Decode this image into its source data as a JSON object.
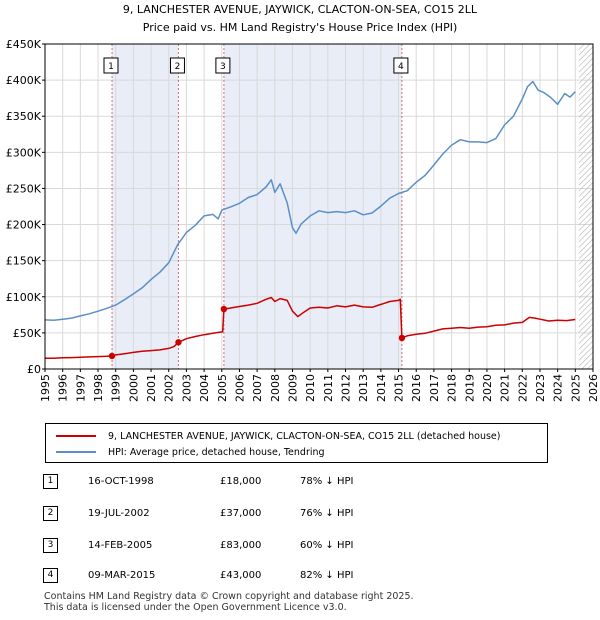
{
  "chart_data": {
    "type": "line",
    "title": "9, LANCHESTER AVENUE, JAYWICK, CLACTON-ON-SEA, CO15 2LL",
    "subtitle": "Price paid vs. HM Land Registry's House Price Index (HPI)",
    "xlim": [
      1995,
      2026
    ],
    "ylim": [
      0,
      450000
    ],
    "x_ticks": [
      1995,
      1996,
      1997,
      1998,
      1999,
      2000,
      2001,
      2002,
      2003,
      2004,
      2005,
      2006,
      2007,
      2008,
      2009,
      2010,
      2011,
      2012,
      2013,
      2014,
      2015,
      2016,
      2017,
      2018,
      2019,
      2020,
      2021,
      2022,
      2023,
      2024,
      2025,
      2026
    ],
    "y_ticks": [
      0,
      50000,
      100000,
      150000,
      200000,
      250000,
      300000,
      350000,
      400000,
      450000
    ],
    "y_tick_labels": [
      "£0",
      "£50K",
      "£100K",
      "£150K",
      "£200K",
      "£250K",
      "£300K",
      "£350K",
      "£400K",
      "£450K"
    ],
    "data_end": 2025.2,
    "colors": {
      "price_paid": "#cc0000",
      "hpi": "#5b8fc7",
      "shade": "#e8edf7",
      "marker_line": "#cc0000"
    },
    "series": [
      {
        "name": "9, LANCHESTER AVENUE, JAYWICK, CLACTON-ON-SEA, CO15 2LL (detached house)",
        "color": "#cc0000",
        "x": [
          1995.0,
          1995.5,
          1996.0,
          1996.5,
          1997.0,
          1997.5,
          1998.0,
          1998.5,
          1998.79,
          1999.0,
          1999.5,
          2000.0,
          2000.5,
          2001.0,
          2001.5,
          2002.0,
          2002.3,
          2002.55,
          2003.0,
          2003.5,
          2004.0,
          2004.5,
          2005.05,
          2005.12,
          2005.5,
          2006.0,
          2006.5,
          2007.0,
          2007.5,
          2007.8,
          2008.0,
          2008.3,
          2008.7,
          2009.0,
          2009.3,
          2009.6,
          2010.0,
          2010.5,
          2011.0,
          2011.5,
          2012.0,
          2012.5,
          2013.0,
          2013.5,
          2014.0,
          2014.5,
          2015.0,
          2015.1,
          2015.19,
          2015.5,
          2016.0,
          2016.5,
          2017.0,
          2017.5,
          2018.0,
          2018.5,
          2019.0,
          2019.5,
          2020.0,
          2020.5,
          2021.0,
          2021.5,
          2022.0,
          2022.4,
          2022.7,
          2023.0,
          2023.5,
          2024.0,
          2024.5,
          2025.0
        ],
        "y": [
          15000,
          14800,
          15500,
          15800,
          16200,
          16800,
          17200,
          17600,
          18000,
          19500,
          21000,
          23000,
          24500,
          25500,
          26500,
          28500,
          31000,
          37000,
          42000,
          45000,
          47500,
          49500,
          51500,
          83000,
          84500,
          86500,
          88500,
          91000,
          96500,
          99000,
          93500,
          97500,
          95000,
          80000,
          72500,
          78000,
          84500,
          85500,
          84500,
          87500,
          86000,
          88500,
          86000,
          85500,
          89500,
          93500,
          95000,
          96500,
          43000,
          46000,
          48000,
          49500,
          52500,
          55500,
          56500,
          57500,
          56500,
          58000,
          58500,
          60500,
          61000,
          63500,
          64500,
          71500,
          70500,
          69000,
          66500,
          67500,
          67000,
          68500
        ]
      },
      {
        "name": "HPI: Average price, detached house, Tendring",
        "color": "#5b8fc7",
        "x": [
          1995.0,
          1995.5,
          1996.0,
          1996.5,
          1997.0,
          1997.5,
          1998.0,
          1998.5,
          1999.0,
          1999.5,
          2000.0,
          2000.5,
          2001.0,
          2001.5,
          2002.0,
          2002.5,
          2003.0,
          2003.5,
          2004.0,
          2004.5,
          2004.8,
          2005.0,
          2005.5,
          2006.0,
          2006.5,
          2007.0,
          2007.5,
          2007.8,
          2008.0,
          2008.3,
          2008.7,
          2009.0,
          2009.2,
          2009.5,
          2010.0,
          2010.5,
          2011.0,
          2011.5,
          2012.0,
          2012.5,
          2013.0,
          2013.5,
          2014.0,
          2014.5,
          2015.0,
          2015.5,
          2016.0,
          2016.5,
          2017.0,
          2017.5,
          2018.0,
          2018.5,
          2019.0,
          2019.5,
          2020.0,
          2020.5,
          2021.0,
          2021.5,
          2022.0,
          2022.3,
          2022.6,
          2022.9,
          2023.2,
          2023.6,
          2024.0,
          2024.4,
          2024.7,
          2025.0
        ],
        "y": [
          68000,
          67500,
          69000,
          70500,
          73500,
          76500,
          80000,
          84000,
          88500,
          96000,
          104000,
          112500,
          124000,
          134000,
          147000,
          172000,
          189000,
          199000,
          212000,
          214000,
          208000,
          220000,
          224500,
          229500,
          237500,
          241500,
          252000,
          262000,
          244500,
          256500,
          230000,
          195500,
          188000,
          201000,
          212000,
          219000,
          216500,
          218000,
          216500,
          219000,
          213500,
          216000,
          225500,
          236500,
          243000,
          247000,
          258500,
          268000,
          282500,
          297500,
          310000,
          317500,
          314500,
          314500,
          313500,
          319000,
          338000,
          350000,
          374000,
          391000,
          398000,
          386000,
          383000,
          376000,
          366500,
          381500,
          376500,
          384000
        ]
      }
    ],
    "sales": [
      {
        "num": "1",
        "x": 1998.79,
        "y": 18000
      },
      {
        "num": "2",
        "x": 2002.55,
        "y": 37000
      },
      {
        "num": "3",
        "x": 2005.12,
        "y": 83000
      },
      {
        "num": "4",
        "x": 2015.19,
        "y": 43000
      }
    ]
  },
  "legend": {
    "property": "9, LANCHESTER AVENUE, JAYWICK, CLACTON-ON-SEA, CO15 2LL (detached house)",
    "hpi": "HPI: Average price, detached house, Tendring"
  },
  "sales_table": [
    {
      "num": "1",
      "date": "16-OCT-1998",
      "price": "£18,000",
      "delta": "78% ↓ HPI"
    },
    {
      "num": "2",
      "date": "19-JUL-2002",
      "price": "£37,000",
      "delta": "76% ↓ HPI"
    },
    {
      "num": "3",
      "date": "14-FEB-2005",
      "price": "£83,000",
      "delta": "60% ↓ HPI"
    },
    {
      "num": "4",
      "date": "09-MAR-2015",
      "price": "£43,000",
      "delta": "82% ↓ HPI"
    }
  ],
  "footer": {
    "line1": "Contains HM Land Registry data © Crown copyright and database right 2025.",
    "line2": "This data is licensed under the Open Government Licence v3.0."
  }
}
